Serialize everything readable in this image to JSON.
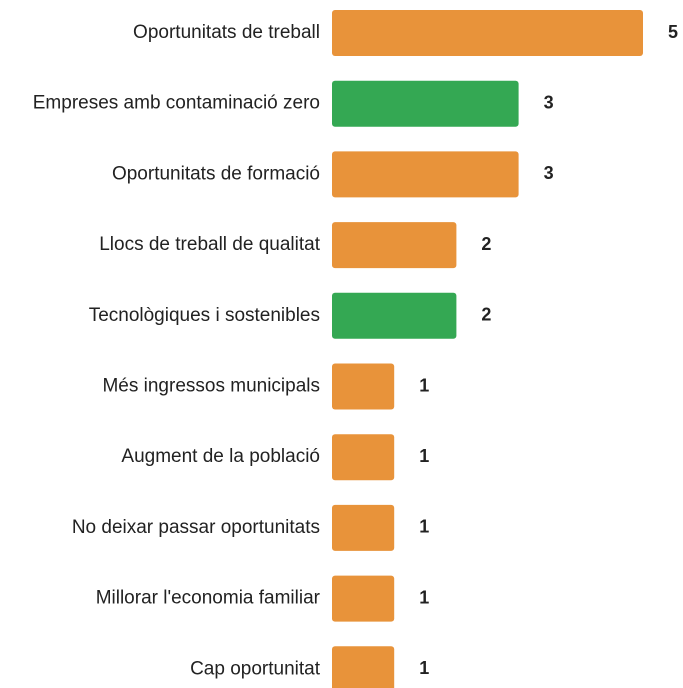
{
  "chart_data": {
    "type": "hbar",
    "categories": [
      "Oportunitats de treball",
      "Empreses amb contaminació zero",
      "Oportunitats de formació",
      "Llocs de treball de qualitat",
      "Tecnològiques i sostenibles",
      "Més ingressos municipals",
      "Augment de la població",
      "No deixar passar oportunitats",
      "Millorar l'economia familiar",
      "Cap oportunitat"
    ],
    "values": [
      5,
      3,
      3,
      2,
      2,
      1,
      1,
      1,
      1,
      1
    ],
    "colors": [
      "#e8933a",
      "#34a853",
      "#e8933a",
      "#e8933a",
      "#34a853",
      "#e8933a",
      "#e8933a",
      "#e8933a",
      "#e8933a",
      "#e8933a"
    ],
    "xlim": [
      0,
      5
    ]
  }
}
